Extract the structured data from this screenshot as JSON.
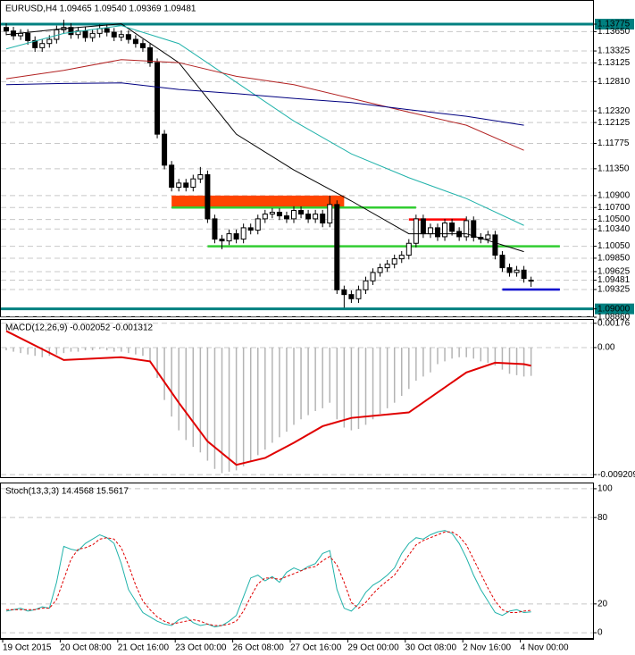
{
  "chart_data": [
    {
      "type": "candlestick",
      "title": "EURUSD,H4  1.09465 1.09540 1.09369 1.09481",
      "categories": [
        "19 Oct 2015",
        null,
        null,
        null,
        null,
        null,
        null,
        null,
        "20 Oct 08:00",
        null,
        null,
        null,
        null,
        null,
        null,
        null,
        "21 Oct 16:00",
        null,
        null,
        null,
        null,
        null,
        null,
        null,
        "23 Oct 00:00",
        null,
        null,
        null,
        null,
        null,
        null,
        null,
        "26 Oct 08:00",
        null,
        null,
        null,
        null,
        null,
        null,
        null,
        "27 Oct 16:00",
        null,
        null,
        null,
        null,
        null,
        null,
        null,
        "29 Oct 00:00",
        null,
        null,
        null,
        null,
        null,
        null,
        null,
        "30 Oct 08:00",
        null,
        null,
        null,
        null,
        null,
        null,
        null,
        "2 Nov 16:00",
        null,
        null,
        null,
        null,
        null,
        null,
        null,
        "4 Nov 00:00",
        null
      ],
      "open": [
        1.1372,
        1.1366,
        1.1358,
        1.1362,
        1.135,
        1.1338,
        1.1345,
        1.1352,
        1.1368,
        1.1372,
        1.136,
        1.1366,
        1.1355,
        1.1362,
        1.137,
        1.1364,
        1.1356,
        1.136,
        1.1352,
        1.1345,
        1.1338,
        1.1313,
        1.1193,
        1.1141,
        1.1104,
        1.1111,
        1.1104,
        1.1118,
        1.1125,
        1.1051,
        1.1017,
        1.1014,
        1.1026,
        1.1017,
        1.1036,
        1.1032,
        1.1051,
        1.1059,
        1.1062,
        1.1056,
        1.1051,
        1.1065,
        1.1059,
        1.1051,
        1.1059,
        1.1044,
        1.1075,
        1.0932,
        1.0924,
        1.0917,
        1.0932,
        1.0947,
        1.0961,
        1.0969,
        1.0975,
        1.0984,
        1.099,
        1.101,
        1.1051,
        1.1026,
        1.1036,
        1.1021,
        1.1044,
        1.103,
        1.1021,
        1.1048,
        1.102,
        1.1017,
        1.1024,
        1.099,
        1.0969,
        1.0961,
        1.0965,
        1.09465
      ],
      "high": [
        1.1379,
        1.1373,
        1.1369,
        1.1369,
        1.1357,
        1.1352,
        1.1359,
        1.1375,
        1.1385,
        1.1379,
        1.1373,
        1.1373,
        1.1369,
        1.1377,
        1.1377,
        1.1371,
        1.1367,
        1.1367,
        1.1359,
        1.1352,
        1.1345,
        1.132,
        1.12,
        1.1148,
        1.1118,
        1.1118,
        1.1125,
        1.1138,
        1.1132,
        1.1058,
        1.1024,
        1.1033,
        1.1033,
        1.1043,
        1.1043,
        1.1058,
        1.1066,
        1.1069,
        1.1069,
        1.1063,
        1.1072,
        1.1072,
        1.1066,
        1.1066,
        1.1066,
        1.109,
        1.1082,
        1.0939,
        1.0931,
        1.0939,
        1.0954,
        1.0968,
        1.0976,
        1.0982,
        1.0991,
        1.0997,
        1.1017,
        1.1058,
        1.1058,
        1.1043,
        1.1043,
        1.1051,
        1.1051,
        1.1037,
        1.1055,
        1.1055,
        1.1027,
        1.1031,
        1.1031,
        1.0997,
        1.0976,
        1.0972,
        1.0972,
        1.0954
      ],
      "low": [
        1.1359,
        1.1351,
        1.1351,
        1.1343,
        1.1331,
        1.1331,
        1.1338,
        1.1345,
        1.1361,
        1.1353,
        1.1353,
        1.1348,
        1.1348,
        1.1355,
        1.1357,
        1.1349,
        1.1349,
        1.1345,
        1.1338,
        1.1331,
        1.1306,
        1.1186,
        1.1134,
        1.1097,
        1.1097,
        1.1097,
        1.1097,
        1.1111,
        1.1044,
        1.101,
        1.1,
        1.1007,
        1.101,
        1.101,
        1.1025,
        1.1025,
        1.1044,
        1.1052,
        1.1049,
        1.1044,
        1.1044,
        1.1052,
        1.1044,
        1.1044,
        1.1037,
        1.1037,
        1.0925,
        1.0902,
        1.091,
        1.091,
        1.0925,
        1.094,
        1.0954,
        1.0962,
        1.0968,
        1.0977,
        1.0983,
        1.1003,
        1.1019,
        1.1019,
        1.1014,
        1.1014,
        1.1023,
        1.1014,
        1.1014,
        1.1013,
        1.101,
        1.101,
        1.0983,
        1.0962,
        1.0954,
        1.0954,
        1.0944,
        1.09369
      ],
      "close": [
        1.1366,
        1.1358,
        1.1362,
        1.135,
        1.1338,
        1.1345,
        1.1352,
        1.1368,
        1.1372,
        1.136,
        1.1366,
        1.1355,
        1.1362,
        1.137,
        1.1364,
        1.1356,
        1.136,
        1.1352,
        1.1345,
        1.1338,
        1.1313,
        1.1193,
        1.1141,
        1.1104,
        1.1111,
        1.1104,
        1.1118,
        1.1125,
        1.1051,
        1.1017,
        1.1014,
        1.1026,
        1.1017,
        1.1036,
        1.1032,
        1.1051,
        1.1059,
        1.1062,
        1.1056,
        1.1051,
        1.1065,
        1.1059,
        1.1051,
        1.1059,
        1.1044,
        1.1075,
        1.0932,
        1.0924,
        1.0917,
        1.0932,
        1.0947,
        1.0961,
        1.0969,
        1.0975,
        1.0984,
        1.099,
        1.101,
        1.1051,
        1.1026,
        1.1036,
        1.1021,
        1.1044,
        1.103,
        1.1021,
        1.1048,
        1.102,
        1.1017,
        1.1024,
        1.099,
        1.0969,
        1.0961,
        1.0965,
        1.0951,
        1.09481
      ],
      "overlays": [
        {
          "color": "#000000",
          "x": [
            0,
            8,
            16,
            24,
            32,
            40,
            48,
            56,
            64,
            72
          ],
          "values": [
            1.136,
            1.137,
            1.1378,
            1.1313,
            1.1193,
            1.1133,
            1.1081,
            1.1026,
            1.1026,
            1.0996
          ]
        },
        {
          "color": "#20b2aa",
          "x": [
            0,
            8,
            16,
            24,
            32,
            40,
            48,
            56,
            64,
            72
          ],
          "values": [
            1.1336,
            1.1362,
            1.1375,
            1.1345,
            1.128,
            1.1215,
            1.116,
            1.112,
            1.1085,
            1.104
          ]
        },
        {
          "color": "#b22222",
          "x": [
            0,
            8,
            16,
            24,
            32,
            40,
            48,
            56,
            64,
            72
          ],
          "values": [
            1.1286,
            1.13,
            1.1318,
            1.1313,
            1.129,
            1.1276,
            1.1253,
            1.123,
            1.1208,
            1.1166
          ]
        },
        {
          "color": "#000080",
          "x": [
            0,
            8,
            16,
            24,
            32,
            40,
            48,
            56,
            64,
            72
          ],
          "values": [
            1.1276,
            1.1278,
            1.1279,
            1.1268,
            1.1261,
            1.1253,
            1.1246,
            1.1234,
            1.1223,
            1.1208
          ]
        }
      ],
      "levels": [
        {
          "value": 1.13775,
          "color": "#008080"
        },
        {
          "value": 1.09,
          "color": "#008080"
        },
        {
          "value": 1.107,
          "color": "#32cd32",
          "start": 23,
          "end": 57
        },
        {
          "value": 1.1005,
          "color": "#32cd32",
          "start": 28,
          "end": 77
        },
        {
          "value": 1.105,
          "color": "#ff0000",
          "start": 56,
          "end": 64
        },
        {
          "value": 1.09325,
          "color": "#0000cd",
          "start": 69,
          "end": 77
        }
      ],
      "zones": [
        {
          "from": 1.109,
          "to": 1.107,
          "start": 23,
          "end": 47,
          "color": "#ff4500"
        }
      ],
      "ylim": [
        1.0886,
        1.1418
      ],
      "yticks": [
        1.13775,
        {
          "value": 1.1365,
          "label": "1.13650"
        },
        1.13325,
        1.13125,
        {
          "value": 1.1281,
          "label": "1.12810"
        },
        {
          "value": 1.1232,
          "label": "1.12320"
        },
        1.12125,
        1.11775,
        {
          "value": 1.1135,
          "label": "1.11350"
        },
        {
          "value": 1.109,
          "label": "1.10900"
        },
        {
          "value": 1.107,
          "label": "1.10700"
        },
        {
          "value": 1.105,
          "label": "1.10500"
        },
        {
          "value": 1.1034,
          "label": "1.10340"
        },
        {
          "value": 1.1005,
          "label": "1.10050"
        },
        {
          "value": 1.0985,
          "label": "1.09850"
        },
        1.09625,
        1.09481,
        1.09325,
        {
          "value": 1.09,
          "label": "1.09000"
        },
        {
          "value": 1.0886,
          "label": "1.08860"
        }
      ],
      "grid": true
    },
    {
      "type": "bar",
      "title": "MACD(12,26,9) -0.002052 -0.001312",
      "color": "#b4b4b4",
      "values": [
        -0.0002,
        -0.0003,
        -0.0004,
        -0.0005,
        -0.0006,
        -0.0007,
        -0.0006,
        -0.0005,
        -0.0004,
        -0.0003,
        -0.0003,
        -0.0002,
        -0.0002,
        -0.0001,
        -0.0002,
        -0.0003,
        -0.0003,
        -0.0004,
        -0.0005,
        -0.0006,
        -0.001,
        -0.0022,
        -0.0038,
        -0.005,
        -0.006,
        -0.0067,
        -0.0072,
        -0.0076,
        -0.0082,
        -0.0088,
        -0.0091,
        -0.009,
        -0.0089,
        -0.0086,
        -0.0083,
        -0.0078,
        -0.0074,
        -0.0069,
        -0.0065,
        -0.0061,
        -0.0056,
        -0.0052,
        -0.0049,
        -0.0046,
        -0.0044,
        -0.004,
        -0.0052,
        -0.0058,
        -0.006,
        -0.0059,
        -0.0056,
        -0.0052,
        -0.0048,
        -0.0044,
        -0.004,
        -0.0035,
        -0.003,
        -0.0024,
        -0.0021,
        -0.0018,
        -0.0012,
        -0.001,
        -0.0008,
        -0.0007,
        -0.0007,
        -0.0008,
        -0.001,
        -0.0011,
        -0.0013,
        -0.0016,
        -0.0019,
        -0.002,
        -0.0021,
        -0.002052
      ],
      "overlays": [
        {
          "color": "#e00000",
          "x": [
            0,
            8,
            16,
            20,
            24,
            28,
            32,
            36,
            40,
            44,
            48,
            56,
            64,
            68,
            72,
            73
          ],
          "values": [
            0.0012,
            -0.0009,
            -0.0007,
            -0.001,
            -0.004,
            -0.0068,
            -0.0085,
            -0.008,
            -0.0069,
            -0.0057,
            -0.0051,
            -0.0047,
            -0.0018,
            -0.0011,
            -0.0012,
            -0.001312
          ]
        }
      ],
      "ylim": [
        -0.00946,
        0.00207
      ],
      "yticks": [
        0.00176,
        {
          "value": 0,
          "label": "0.00"
        },
        -0.009209
      ],
      "grid": true
    },
    {
      "type": "line",
      "title": "Stoch(13,3,3) 14.4568 15.5617",
      "series": [
        {
          "color": "#20b2aa",
          "values": [
            15,
            16,
            17,
            15,
            16,
            18,
            17,
            35,
            60,
            58,
            57,
            62,
            65,
            68,
            66,
            62,
            48,
            30,
            22,
            14,
            11,
            8,
            6,
            5,
            9,
            11,
            7,
            5,
            6,
            4,
            5,
            8,
            12,
            25,
            38,
            40,
            36,
            39,
            35,
            42,
            45,
            43,
            46,
            48,
            55,
            57,
            30,
            17,
            15,
            20,
            28,
            33,
            36,
            40,
            45,
            55,
            62,
            66,
            65,
            68,
            70,
            71,
            69,
            62,
            52,
            40,
            30,
            22,
            14,
            12,
            15,
            16,
            14,
            14.4568
          ]
        },
        {
          "color": "#e00000",
          "dashed": true,
          "values": [
            16,
            16,
            16,
            16,
            16,
            17,
            17,
            23,
            37,
            51,
            58,
            59,
            61,
            65,
            66,
            65,
            59,
            47,
            33,
            22,
            16,
            11,
            8,
            6,
            7,
            8,
            9,
            8,
            6,
            5,
            5,
            6,
            8,
            15,
            25,
            34,
            38,
            38,
            37,
            39,
            41,
            43,
            45,
            46,
            50,
            53,
            47,
            35,
            21,
            17,
            21,
            27,
            32,
            36,
            40,
            47,
            54,
            61,
            64,
            66,
            68,
            70,
            70,
            67,
            61,
            51,
            41,
            31,
            22,
            16,
            14,
            14,
            15,
            15.5617
          ]
        }
      ],
      "ylim": [
        -4.3,
        104.3
      ],
      "yticks": [
        100,
        80,
        20,
        0
      ],
      "grid": true
    }
  ]
}
